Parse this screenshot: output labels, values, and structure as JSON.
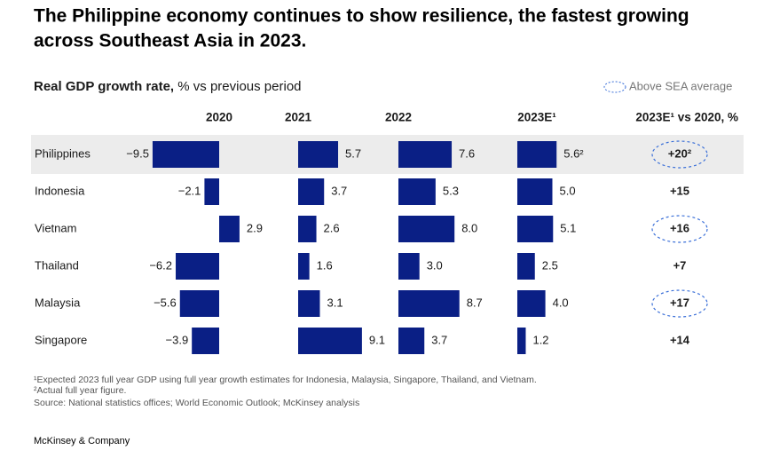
{
  "title_lines": [
    "The Philippine economy continues to show resilience, the fastest growing",
    "across Southeast Asia in 2023."
  ],
  "subtitle_bold": "Real GDP growth rate,",
  "subtitle": "% vs previous period",
  "legend": "Above SEA average",
  "chart_data": [
    {
      "type": "bar",
      "orientation": "horizontal",
      "title": "2020",
      "color": "#0a1f85",
      "categories": [
        "Philippines",
        "Indonesia",
        "Vietnam",
        "Thailand",
        "Malaysia",
        "Singapore"
      ],
      "values": [
        -9.5,
        -2.1,
        2.9,
        -6.2,
        -5.6,
        -3.9
      ],
      "value_labels": [
        "−9.5",
        "−2.1",
        "2.9",
        "−6.2",
        "−5.6",
        "−3.9"
      ],
      "xlim": [
        -10,
        4
      ]
    },
    {
      "type": "bar",
      "orientation": "horizontal",
      "title": "2021",
      "color": "#0a1f85",
      "values": [
        5.7,
        3.7,
        2.6,
        1.6,
        3.1,
        9.1
      ],
      "xlim": [
        0,
        10
      ]
    },
    {
      "type": "bar",
      "orientation": "horizontal",
      "title": "2022",
      "color": "#0a1f85",
      "values": [
        7.6,
        5.3,
        8.0,
        3.0,
        8.7,
        3.7
      ],
      "value_labels": [
        "7.6",
        "5.3",
        "8.0",
        "3.0",
        "8.7",
        "3.7"
      ],
      "xlim": [
        0,
        10
      ]
    },
    {
      "type": "bar",
      "orientation": "horizontal",
      "title": "2023E¹",
      "color": "#0a1f85",
      "values": [
        5.6,
        5.0,
        5.1,
        2.5,
        4.0,
        1.2
      ],
      "value_labels": [
        "5.6²",
        "5.0",
        "5.1",
        "2.5",
        "4.0",
        "1.2"
      ],
      "xlim": [
        0,
        10
      ]
    }
  ],
  "comparison": {
    "title": "2023E¹ vs 2020, %",
    "values": [
      20,
      15,
      16,
      7,
      17,
      14
    ],
    "value_labels": [
      "+20²",
      "+15",
      "+16",
      "+7",
      "+17",
      "+14"
    ],
    "above_sea_average": [
      true,
      false,
      true,
      false,
      true,
      false
    ],
    "circle_color": "#3a6fd8"
  },
  "footnotes": [
    "¹Expected 2023 full year GDP using full year growth estimates for Indonesia, Malaysia, Singapore, Thailand, and Vietnam.",
    "²Actual full year figure.",
    " Source: National statistics offices; World Economic Outlook; McKinsey analysis"
  ],
  "brand": "McKinsey & Company"
}
